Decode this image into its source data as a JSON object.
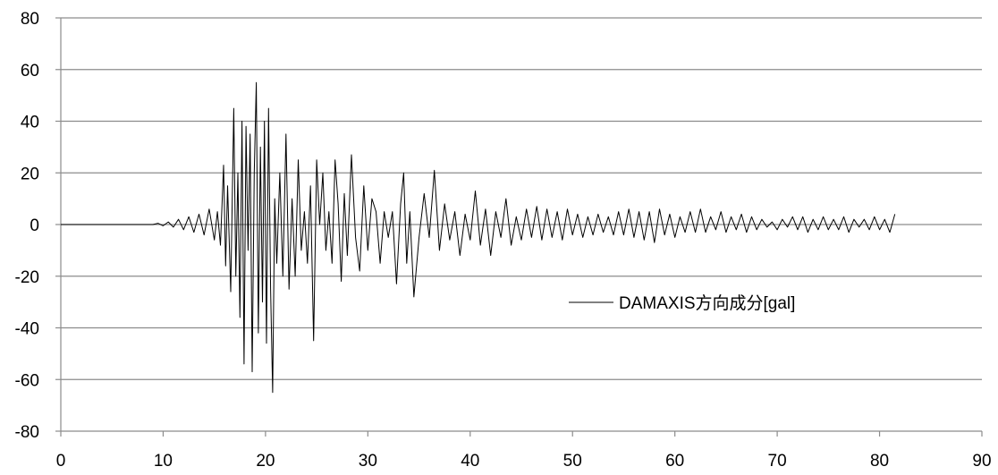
{
  "chart_data": {
    "type": "line",
    "title": "",
    "xlabel": "",
    "ylabel": "",
    "xlim": [
      0,
      90
    ],
    "ylim": [
      -80,
      80
    ],
    "x_ticks": [
      0,
      10,
      20,
      30,
      40,
      50,
      60,
      70,
      80,
      90
    ],
    "y_ticks": [
      -80,
      -60,
      -40,
      -20,
      0,
      20,
      40,
      60,
      80
    ],
    "x_tick_labels": [
      "0",
      "10",
      "20",
      "30",
      "40",
      "50",
      "60",
      "70",
      "80",
      "90"
    ],
    "y_tick_labels": [
      "-80",
      "-60",
      "-40",
      "-20",
      "0",
      "20",
      "40",
      "60",
      "80"
    ],
    "grid": "horizontal",
    "legend_position": "center-right",
    "colors": {
      "series": "#000000",
      "grid": "#8c8c8c",
      "axis": "#8c8c8c"
    },
    "series": [
      {
        "name": "DAMAXIS方向成分[gal]",
        "x": [
          0,
          9,
          9.5,
          10,
          10.5,
          11,
          11.5,
          12,
          12.5,
          13,
          13.5,
          14,
          14.5,
          15,
          15.3,
          15.6,
          15.9,
          16.1,
          16.3,
          16.6,
          16.9,
          17.1,
          17.3,
          17.5,
          17.7,
          17.9,
          18.1,
          18.3,
          18.5,
          18.7,
          18.9,
          19.1,
          19.3,
          19.5,
          19.7,
          19.9,
          20.1,
          20.3,
          20.5,
          20.7,
          20.9,
          21.1,
          21.4,
          21.7,
          22,
          22.3,
          22.6,
          22.9,
          23.2,
          23.5,
          23.8,
          24.1,
          24.4,
          24.7,
          25,
          25.3,
          25.6,
          25.9,
          26.2,
          26.5,
          26.8,
          27.1,
          27.4,
          27.7,
          28,
          28.4,
          28.8,
          29.2,
          29.6,
          30,
          30.4,
          30.8,
          31.2,
          31.6,
          32,
          32.4,
          32.8,
          33.2,
          33.5,
          33.8,
          34.1,
          34.5,
          35,
          35.5,
          36,
          36.5,
          37,
          37.5,
          38,
          38.5,
          39,
          39.5,
          40,
          40.5,
          41,
          41.5,
          42,
          42.5,
          43,
          43.5,
          44,
          44.5,
          45,
          45.5,
          46,
          46.5,
          47,
          47.5,
          48,
          48.5,
          49,
          49.5,
          50,
          50.5,
          51,
          51.5,
          52,
          52.5,
          53,
          53.5,
          54,
          54.5,
          55,
          55.5,
          56,
          56.5,
          57,
          57.5,
          58,
          58.5,
          59,
          59.5,
          60,
          60.5,
          61,
          61.5,
          62,
          62.5,
          63,
          63.5,
          64,
          64.5,
          65,
          65.5,
          66,
          66.5,
          67,
          67.5,
          68,
          68.5,
          69,
          69.5,
          70,
          70.5,
          71,
          71.5,
          72,
          72.5,
          73,
          73.5,
          74,
          74.5,
          75,
          75.5,
          76,
          76.5,
          77,
          77.5,
          78,
          78.5,
          79,
          79.5,
          80,
          80.5,
          81,
          81.5
        ],
        "values": [
          0,
          0,
          0.5,
          -0.5,
          1,
          -1,
          2,
          -2,
          3,
          -3,
          4,
          -4,
          6,
          -6,
          5,
          -8,
          23,
          -16,
          15,
          -26,
          45,
          -20,
          20,
          -36,
          40,
          -54,
          38,
          -10,
          35,
          -57,
          20,
          55,
          -42,
          30,
          -30,
          40,
          -46,
          45,
          -25,
          -65,
          10,
          -15,
          20,
          -20,
          35,
          -25,
          10,
          -20,
          25,
          -10,
          5,
          -15,
          15,
          -45,
          25,
          0,
          20,
          -10,
          5,
          -15,
          25,
          8,
          -22,
          12,
          -12,
          27,
          -5,
          -18,
          15,
          -10,
          10,
          5,
          -15,
          5,
          -5,
          5,
          -23,
          8,
          20,
          -15,
          5,
          -28,
          -5,
          12,
          -5,
          21,
          -10,
          8,
          -6,
          5,
          -12,
          4,
          -6,
          13,
          -8,
          6,
          -12,
          5,
          -5,
          10,
          -8,
          3,
          -6,
          6,
          -5,
          7,
          -6,
          6,
          -5,
          5,
          -6,
          6,
          -4,
          4,
          -5,
          3,
          -4,
          4,
          -3,
          3,
          -4,
          5,
          -4,
          6,
          -5,
          5,
          -6,
          5,
          -7,
          6,
          -4,
          4,
          -5,
          3,
          -3,
          5,
          -3,
          6,
          -3,
          3,
          -2,
          5,
          -3,
          3,
          -2,
          4,
          -3,
          3,
          -2,
          2,
          -1,
          1,
          -2,
          2,
          -1,
          3,
          -2,
          3,
          -3,
          2,
          -2,
          3,
          -2,
          2,
          -2,
          3,
          -3,
          2,
          -1,
          2,
          -2,
          3,
          -2,
          2,
          -3,
          4
        ]
      }
    ]
  }
}
